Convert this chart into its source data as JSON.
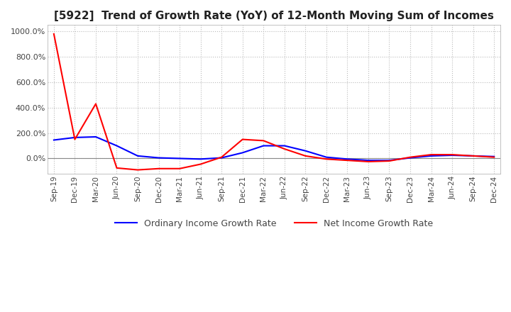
{
  "title": "[5922]  Trend of Growth Rate (YoY) of 12-Month Moving Sum of Incomes",
  "title_fontsize": 11,
  "ylim": [
    -120,
    1050
  ],
  "yticks": [
    0,
    200,
    400,
    600,
    800,
    1000
  ],
  "ytick_labels": [
    "0.0%",
    "200.0%",
    "400.0%",
    "600.0%",
    "800.0%",
    "1000.0%"
  ],
  "background_color": "#ffffff",
  "plot_bg_color": "#ffffff",
  "grid_color": "#bbbbbb",
  "legend_entries": [
    "Ordinary Income Growth Rate",
    "Net Income Growth Rate"
  ],
  "legend_colors": [
    "#0000ff",
    "#ff0000"
  ],
  "x_labels": [
    "Sep-19",
    "Dec-19",
    "Mar-20",
    "Jun-20",
    "Sep-20",
    "Dec-20",
    "Mar-21",
    "Jun-21",
    "Sep-21",
    "Dec-21",
    "Mar-22",
    "Jun-22",
    "Sep-22",
    "Dec-22",
    "Mar-23",
    "Jun-23",
    "Sep-23",
    "Dec-23",
    "Mar-24",
    "Jun-24",
    "Sep-24",
    "Dec-24"
  ],
  "ordinary_income": [
    145,
    165,
    170,
    100,
    20,
    5,
    0,
    -5,
    5,
    45,
    100,
    100,
    60,
    10,
    -5,
    -15,
    -15,
    5,
    20,
    25,
    20,
    15
  ],
  "net_income": [
    980,
    150,
    430,
    -75,
    -90,
    -80,
    -80,
    -45,
    10,
    150,
    140,
    75,
    20,
    -5,
    -15,
    -25,
    -20,
    10,
    30,
    30,
    20,
    10
  ]
}
